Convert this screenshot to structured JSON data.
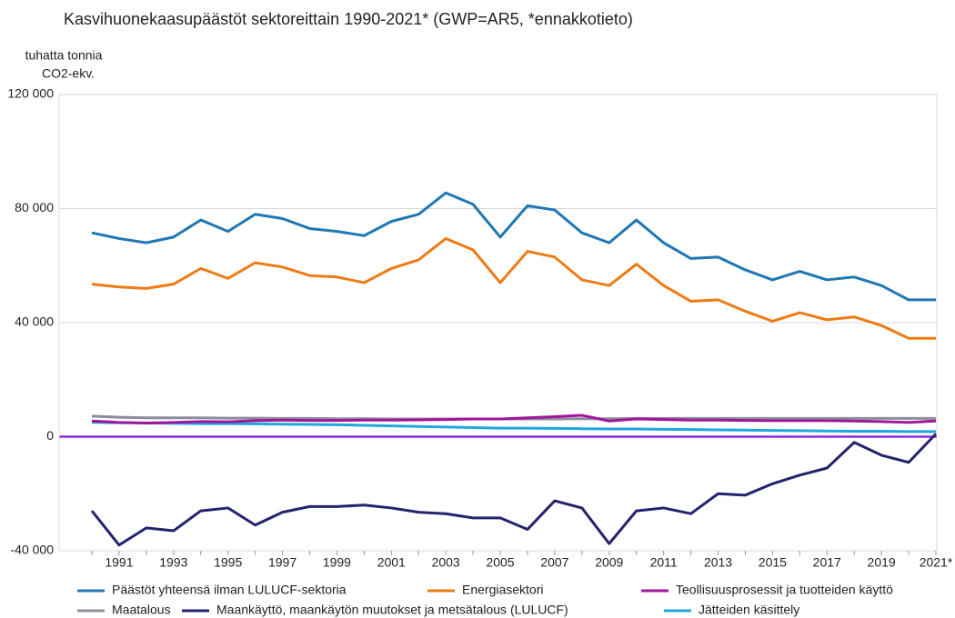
{
  "chart_data": {
    "type": "line",
    "title": "Kasvihuonekaasupäästöt sektoreittain 1990-2021* (GWP=AR5, *ennakkotieto)",
    "y_label": [
      "tuhatta tonnia",
      "CO2-ekv."
    ],
    "categories": [
      null,
      "1991",
      null,
      "1993",
      null,
      "1995",
      null,
      "1997",
      null,
      "1999",
      null,
      "2001",
      null,
      "2003",
      null,
      "2005",
      null,
      "2007",
      null,
      "2009",
      null,
      "2011",
      null,
      "2013",
      null,
      "2015",
      null,
      "2017",
      null,
      "2019",
      null,
      "2021*"
    ],
    "ylim": [
      -40000,
      120000
    ],
    "yticks": [
      {
        "value": -40000,
        "label": "-40 000"
      },
      0,
      {
        "value": 40000,
        "label": "40 000"
      },
      {
        "value": 80000,
        "label": "80 000"
      },
      {
        "value": 120000,
        "label": "120 000"
      }
    ],
    "grid": true,
    "legend": "bottom",
    "series": [
      {
        "name": "Päästöt yhteensä ilman LULUCF-sektoria",
        "color": "#1f77b4",
        "values": [
          71500,
          69500,
          68000,
          70000,
          76000,
          72000,
          78000,
          76500,
          73000,
          72000,
          70500,
          75500,
          78000,
          85500,
          81500,
          70000,
          81000,
          79500,
          71500,
          68000,
          76000,
          68000,
          62500,
          63000,
          58500,
          55000,
          58000,
          55000,
          56000,
          53000,
          48000,
          48000
        ]
      },
      {
        "name": "Energiasektori",
        "color": "#ee7b14",
        "values": [
          53500,
          52500,
          52000,
          53500,
          59000,
          55500,
          61000,
          59500,
          56500,
          56000,
          54000,
          59000,
          62000,
          69500,
          65500,
          54000,
          65000,
          63000,
          55000,
          53000,
          60500,
          53000,
          47500,
          48000,
          44000,
          40500,
          43500,
          41000,
          42000,
          39000,
          34500,
          34500
        ]
      },
      {
        "name": "Teollisuusprosessit ja tuotteiden käyttö",
        "color": "#a0169b",
        "values": [
          5500,
          5000,
          4800,
          5000,
          5300,
          5200,
          5600,
          5800,
          5700,
          5700,
          5800,
          5800,
          5900,
          6000,
          6200,
          6200,
          6600,
          7000,
          7500,
          5500,
          6200,
          6000,
          5800,
          5800,
          5700,
          5600,
          5600,
          5600,
          5500,
          5300,
          5000,
          5500
        ]
      },
      {
        "name": "Maatalous",
        "color": "#8c8c9c",
        "values": [
          7200,
          6800,
          6600,
          6600,
          6600,
          6500,
          6500,
          6400,
          6400,
          6300,
          6300,
          6200,
          6200,
          6200,
          6200,
          6200,
          6200,
          6200,
          6300,
          6300,
          6400,
          6400,
          6400,
          6400,
          6400,
          6400,
          6400,
          6400,
          6400,
          6400,
          6400,
          6400
        ]
      },
      {
        "name": "Maankäyttö, maankäytön muutokset ja metsätalous (LULUCF)",
        "color": "#23236e",
        "values": [
          -26000,
          -38000,
          -32000,
          -33000,
          -26000,
          -25000,
          -31000,
          -26500,
          -24500,
          -24500,
          -24000,
          -25000,
          -26500,
          -27000,
          -28500,
          -28500,
          -32500,
          -22500,
          -25000,
          -37500,
          -26000,
          -25000,
          -27000,
          -20000,
          -20500,
          -16500,
          -13500,
          -11000,
          -2000,
          -6500,
          -9000,
          1000
        ]
      },
      {
        "name": "Jätteiden käsittely",
        "color": "#1fa7e0",
        "values": [
          5000,
          4900,
          4800,
          4700,
          4600,
          4600,
          4500,
          4400,
          4300,
          4200,
          4000,
          3800,
          3600,
          3400,
          3200,
          3000,
          3000,
          2900,
          2800,
          2700,
          2700,
          2600,
          2500,
          2400,
          2300,
          2200,
          2100,
          2000,
          1900,
          1900,
          1800,
          1800
        ]
      }
    ]
  }
}
